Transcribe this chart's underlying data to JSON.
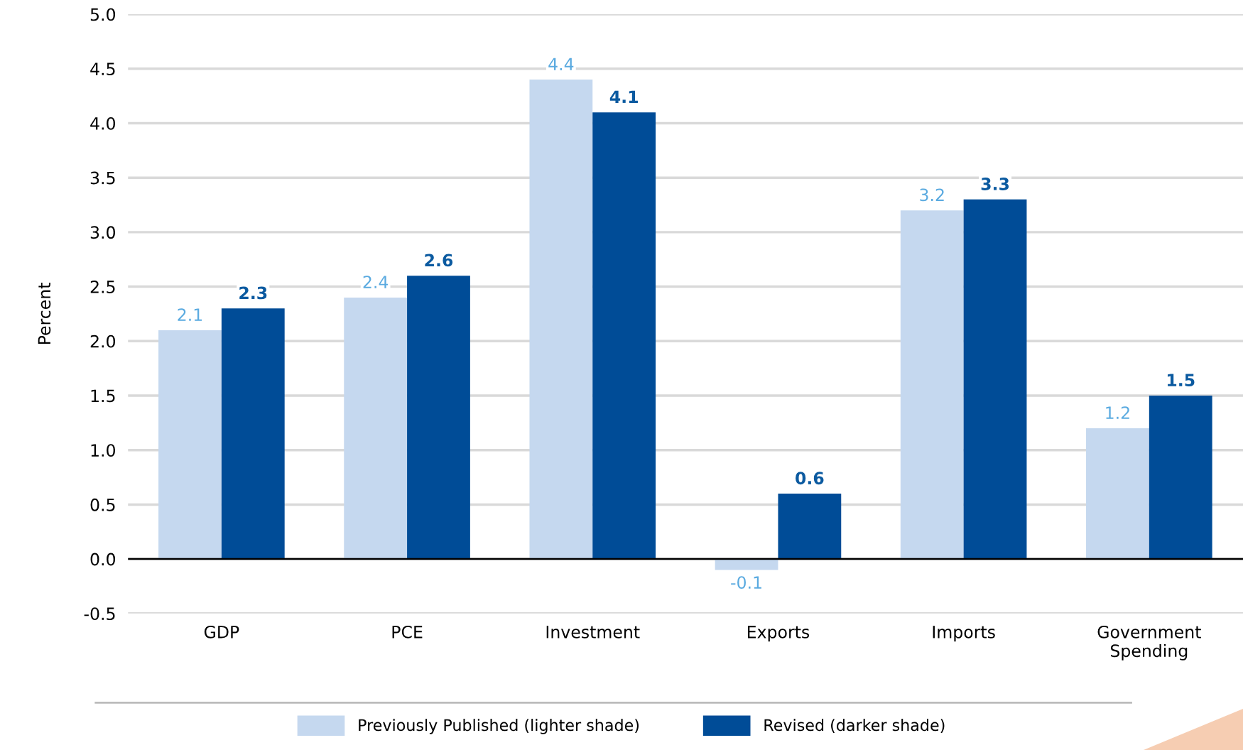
{
  "chart_data": {
    "type": "bar",
    "ylabel": "Percent",
    "categories": [
      "GDP",
      "PCE",
      "Investment",
      "Exports",
      "Imports",
      "Government\nSpending"
    ],
    "series": [
      {
        "name": "Previously Published (lighter shade)",
        "color": "#c5d8ef",
        "values": [
          2.1,
          2.4,
          4.4,
          -0.1,
          3.2,
          1.2
        ]
      },
      {
        "name": "Revised (darker shade)",
        "color": "#004c97",
        "values": [
          2.3,
          2.6,
          4.1,
          0.6,
          3.3,
          1.5
        ]
      }
    ],
    "ylim": [
      -0.5,
      5.0
    ],
    "yticks": [
      {
        "value": -0.5,
        "label": "-0.5"
      },
      {
        "value": 0,
        "label": "0.0"
      },
      {
        "value": 0.5,
        "label": "0.5"
      },
      {
        "value": 1,
        "label": "1.0"
      },
      {
        "value": 1.5,
        "label": "1.5"
      },
      {
        "value": 2,
        "label": "2.0"
      },
      {
        "value": 2.5,
        "label": "2.5"
      },
      {
        "value": 3,
        "label": "3.0"
      },
      {
        "value": 3.5,
        "label": "3.5"
      },
      {
        "value": 4,
        "label": "4.0"
      },
      {
        "value": 4.5,
        "label": "4.5"
      },
      {
        "value": 5,
        "label": "5.0"
      }
    ],
    "grid": "y",
    "legend": "bottom",
    "data_labels": true
  }
}
